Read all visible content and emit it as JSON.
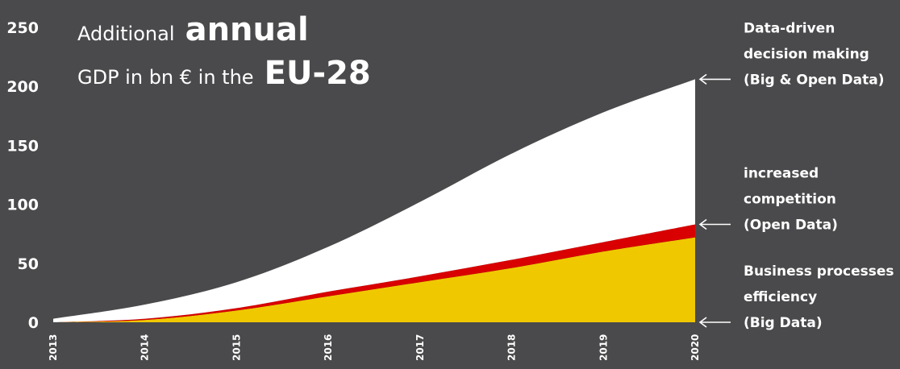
{
  "title": {
    "line1_prefix": "Additional",
    "line1_emphasis": "annual",
    "line2_prefix": "GDP in bn € in the",
    "line2_emphasis": "EU-28"
  },
  "chart_data": {
    "type": "area",
    "stacked": true,
    "x": [
      "2013",
      "2014",
      "2015",
      "2016",
      "2017",
      "2018",
      "2019",
      "2020"
    ],
    "ylim": [
      0,
      250
    ],
    "yticks": [
      0,
      50,
      100,
      150,
      200,
      250
    ],
    "grid": false,
    "series": [
      {
        "name": "Business processes efficiency (Big Data)",
        "values": [
          0,
          2,
          10,
          22,
          34,
          46,
          60,
          72
        ],
        "color": "#f0c800"
      },
      {
        "name": "increased competition (Open Data)",
        "values": [
          0,
          1,
          2,
          4,
          5,
          7,
          8,
          11
        ],
        "color": "#d80000"
      },
      {
        "name": "Data-driven decision making (Big & Open Data)",
        "values": [
          3,
          12,
          22,
          38,
          63,
          90,
          110,
          123
        ],
        "color": "#ffffff"
      }
    ]
  },
  "annotations": [
    {
      "lines": [
        "Data-driven",
        "decision making",
        "(Big & Open Data)"
      ]
    },
    {
      "lines": [
        "increased",
        "competition",
        "(Open Data)"
      ]
    },
    {
      "lines": [
        "Business processes",
        "efficiency",
        "(Big Data)"
      ]
    }
  ]
}
